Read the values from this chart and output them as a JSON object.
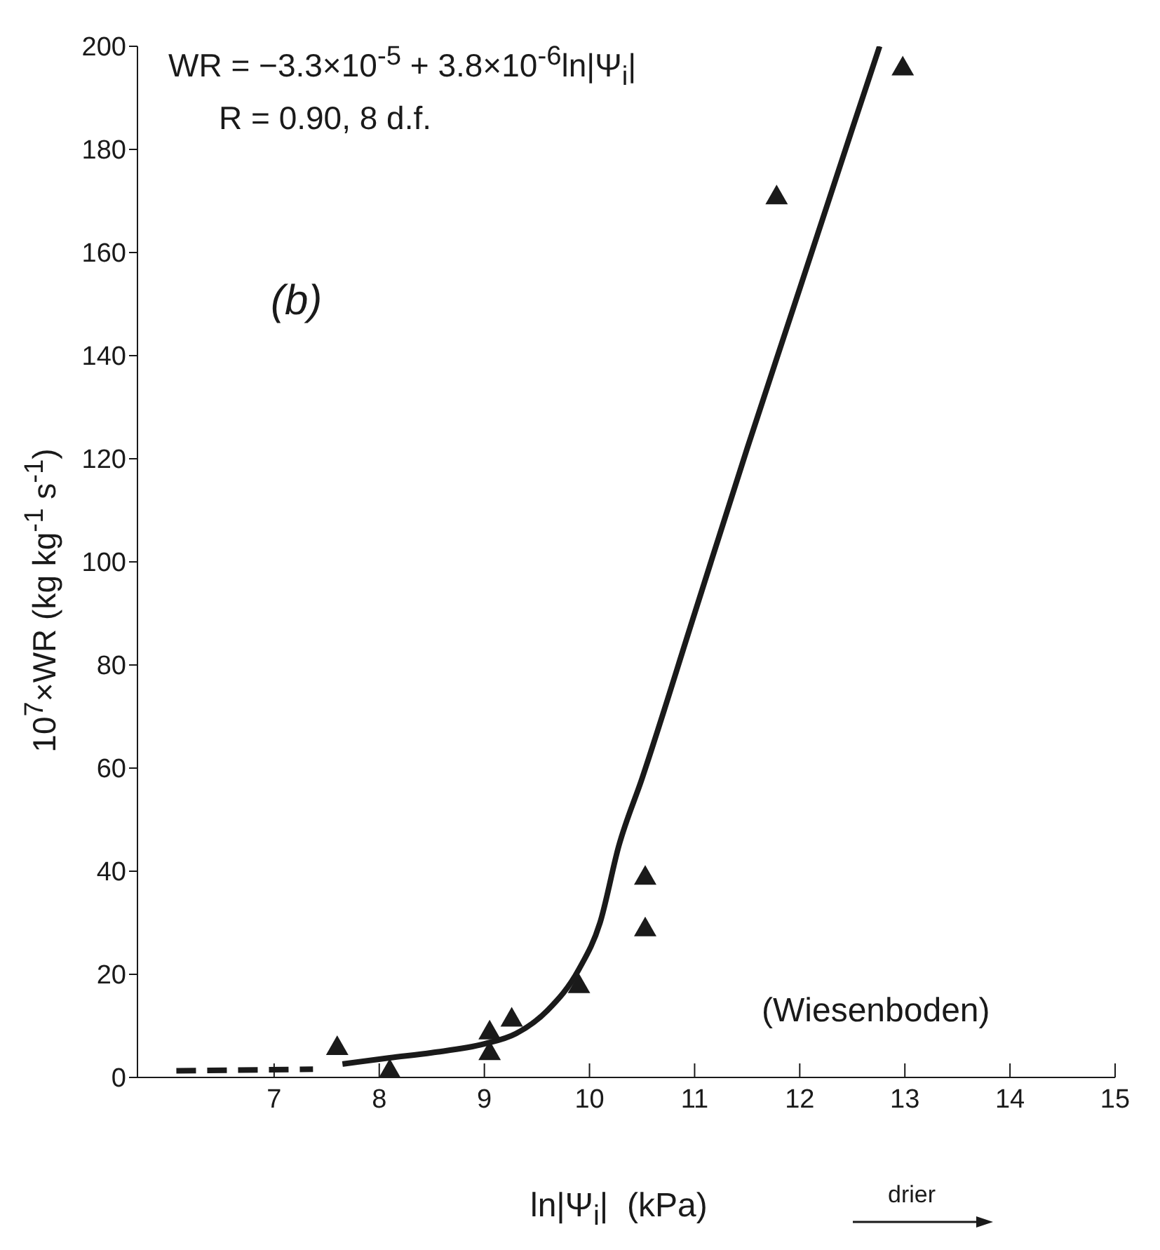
{
  "chart_data": {
    "type": "scatter",
    "xlabel": "ln|Ψ$_{i}$|  (kPa)",
    "ylabel": "10$^{7}$×WR (kg kg$^{-1}$ s$^{-1}$)",
    "xlim": [
      5.7,
      15
    ],
    "xticks": [
      7,
      8,
      9,
      10,
      11,
      12,
      13,
      14,
      15
    ],
    "ylim": [
      0,
      200
    ],
    "yticks": [
      0,
      20,
      40,
      60,
      80,
      100,
      120,
      140,
      160,
      180,
      200
    ],
    "grid": false,
    "legend": false,
    "marker": "triangle",
    "series": [
      {
        "color": "#1a1a1a",
        "x": [
          7.6,
          8.1,
          9.05,
          9.05,
          9.26,
          9.9,
          10.53,
          10.53,
          11.78,
          12.98
        ],
        "values": [
          6,
          1.5,
          9,
          5,
          11.5,
          18,
          39,
          29,
          171,
          196
        ]
      },
      {
        "type": "line",
        "color": "#1a1a1a",
        "line_style": "dashed",
        "marker": "none",
        "x": [
          6.07,
          7.37
        ],
        "values": [
          1.3,
          1.6
        ]
      },
      {
        "type": "line",
        "color": "#1a1a1a",
        "line_style": "solid",
        "marker": "none",
        "x": [
          7.65,
          8.1,
          8.5,
          9.0,
          9.3,
          9.6,
          9.9,
          10.1,
          10.28,
          10.5,
          11.0,
          11.5,
          12.0,
          12.5,
          12.76
        ],
        "values": [
          2.6,
          3.8,
          4.8,
          6.5,
          8.5,
          13,
          21,
          30,
          45,
          58,
          90,
          122,
          153,
          184,
          200
        ]
      }
    ],
    "annotations": [
      "WR = −3.3×10$^{-5}$ + 3.8×10$^{-6}$ln|Ψ$_{i}$|",
      "R = 0.90, 8 d.f.",
      "(b)",
      "(Wiesenboden)",
      "drier"
    ]
  }
}
